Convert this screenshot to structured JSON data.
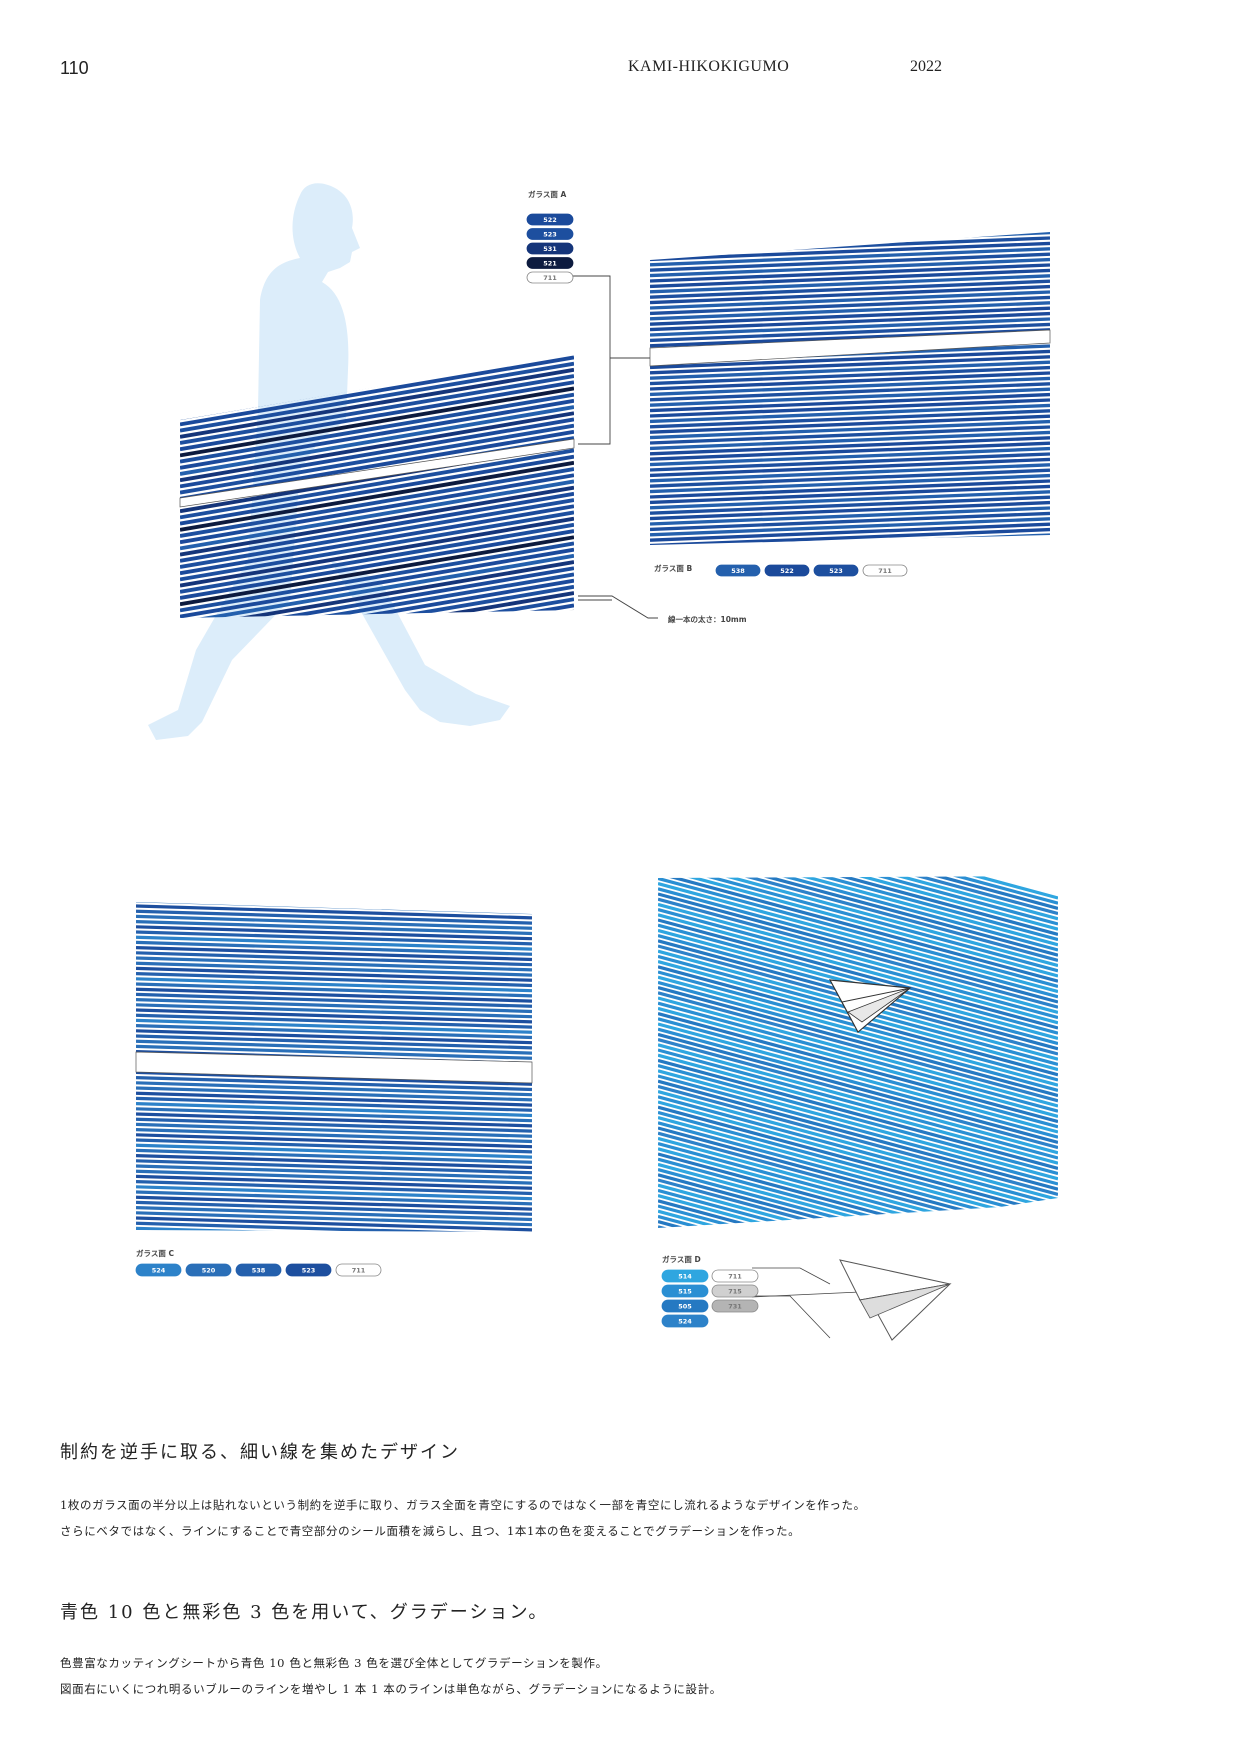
{
  "header": {
    "page_number": "110",
    "title": "KAMI-HIKOKIGUMO",
    "year": "2022"
  },
  "panel_a": {
    "label": "ガラス面 A",
    "chips": [
      "522",
      "523",
      "531",
      "521",
      "711"
    ]
  },
  "panel_b": {
    "label": "ガラス面 B",
    "chips": [
      "538",
      "522",
      "523",
      "711"
    ]
  },
  "panel_c": {
    "label": "ガラス面 C",
    "chips": [
      "524",
      "520",
      "538",
      "523",
      "711"
    ]
  },
  "panel_d": {
    "label": "ガラス面 D",
    "chips_blue": [
      "514",
      "515",
      "505",
      "524"
    ],
    "chips_gray": [
      "711",
      "715",
      "731"
    ]
  },
  "line_note": "線一本の太さ：10mm",
  "colors": {
    "c522": "#1b4a9b",
    "c523": "#1d4f9f",
    "c531": "#15357a",
    "c521": "#0d1b3f",
    "c711": "#ffffff",
    "c538": "#2460ad",
    "c524": "#2d82c9",
    "c520": "#2a6fb8",
    "c514": "#2fa6e0",
    "c515": "#2a8fd3",
    "c505": "#2579c2",
    "c715": "#d0d0d0",
    "c731": "#b4b4b4",
    "silhouette": "#dcedfa"
  },
  "section1": {
    "heading": "制約を逆手に取る、細い線を集めたデザイン",
    "lines": [
      "1枚のガラス面の半分以上は貼れないという制約を逆手に取り、ガラス全面を青空にするのではなく一部を青空にし流れるようなデザインを作った。",
      "さらにベタではなく、ラインにすることで青空部分のシール面積を減らし、且つ、1本1本の色を変えることでグラデーションを作った。"
    ]
  },
  "section2": {
    "heading": "青色 10 色と無彩色 3 色を用いて、グラデーション。",
    "lines": [
      "色豊富なカッティングシートから青色 10 色と無彩色 3 色を選び全体としてグラデーションを製作。",
      "図面右にいくにつれ明るいブルーのラインを増やし 1 本 1 本のラインは単色ながら、グラデーションになるように設計。"
    ]
  }
}
